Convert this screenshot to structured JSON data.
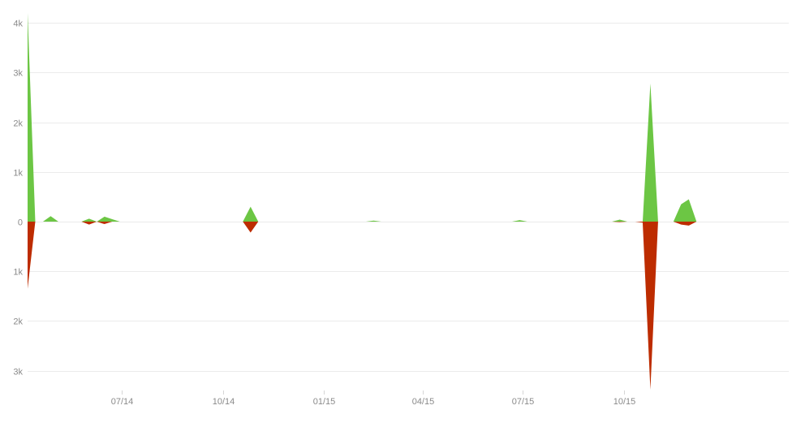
{
  "chart_data": {
    "type": "area",
    "title": "",
    "xlabel": "",
    "ylabel": "",
    "x_axis": {
      "min": "2014-04-06",
      "max": "2016-02-28"
    },
    "ylim": [
      -3600,
      4300
    ],
    "y_ticks": [
      {
        "value": 4000,
        "label": "4k"
      },
      {
        "value": 3000,
        "label": "3k"
      },
      {
        "value": 2000,
        "label": "2k"
      },
      {
        "value": 1000,
        "label": "1k"
      },
      {
        "value": 0,
        "label": "0"
      },
      {
        "value": -1000,
        "label": "1k"
      },
      {
        "value": -2000,
        "label": "2k"
      },
      {
        "value": -3000,
        "label": "3k"
      }
    ],
    "x_ticks": [
      {
        "date": "2014-07-01",
        "label": "07/14"
      },
      {
        "date": "2014-10-01",
        "label": "10/14"
      },
      {
        "date": "2015-01-01",
        "label": "01/15"
      },
      {
        "date": "2015-04-01",
        "label": "04/15"
      },
      {
        "date": "2015-07-01",
        "label": "07/15"
      },
      {
        "date": "2015-10-01",
        "label": "10/15"
      }
    ],
    "grid": true,
    "legend": "none",
    "series": [
      {
        "color": "#6cc644",
        "direction": "up",
        "points": [
          [
            "2014-04-06",
            4200
          ],
          [
            "2014-04-13",
            0
          ],
          [
            "2014-04-20",
            0
          ],
          [
            "2014-04-27",
            110
          ],
          [
            "2014-05-04",
            0
          ],
          [
            "2014-05-11",
            0
          ],
          [
            "2014-05-18",
            0
          ],
          [
            "2014-05-25",
            0
          ],
          [
            "2014-06-01",
            60
          ],
          [
            "2014-06-08",
            0
          ],
          [
            "2014-06-15",
            100
          ],
          [
            "2014-06-22",
            50
          ],
          [
            "2014-06-29",
            0
          ],
          [
            "2014-07-06",
            0
          ],
          [
            "2014-10-19",
            0
          ],
          [
            "2014-10-26",
            300
          ],
          [
            "2014-11-02",
            0
          ],
          [
            "2015-02-08",
            0
          ],
          [
            "2015-02-15",
            20
          ],
          [
            "2015-02-22",
            0
          ],
          [
            "2015-06-21",
            0
          ],
          [
            "2015-06-28",
            30
          ],
          [
            "2015-07-05",
            0
          ],
          [
            "2015-09-20",
            0
          ],
          [
            "2015-09-27",
            40
          ],
          [
            "2015-10-04",
            0
          ],
          [
            "2015-10-18",
            0
          ],
          [
            "2015-10-25",
            2780
          ],
          [
            "2015-11-01",
            0
          ],
          [
            "2015-11-15",
            0
          ],
          [
            "2015-11-22",
            350
          ],
          [
            "2015-11-29",
            450
          ],
          [
            "2015-12-06",
            0
          ]
        ]
      },
      {
        "color": "#bd2c00",
        "direction": "down",
        "points": [
          [
            "2014-04-06",
            -1350
          ],
          [
            "2014-04-13",
            0
          ],
          [
            "2014-05-25",
            0
          ],
          [
            "2014-06-01",
            -60
          ],
          [
            "2014-06-08",
            0
          ],
          [
            "2014-06-15",
            -50
          ],
          [
            "2014-06-22",
            0
          ],
          [
            "2014-10-19",
            0
          ],
          [
            "2014-10-26",
            -220
          ],
          [
            "2014-11-02",
            0
          ],
          [
            "2015-09-20",
            0
          ],
          [
            "2015-09-27",
            -10
          ],
          [
            "2015-10-04",
            0
          ],
          [
            "2015-10-11",
            0
          ],
          [
            "2015-10-18",
            -20
          ],
          [
            "2015-10-25",
            -3380
          ],
          [
            "2015-11-01",
            0
          ],
          [
            "2015-11-15",
            0
          ],
          [
            "2015-11-22",
            -60
          ],
          [
            "2015-11-29",
            -80
          ],
          [
            "2015-12-06",
            0
          ]
        ]
      }
    ]
  }
}
